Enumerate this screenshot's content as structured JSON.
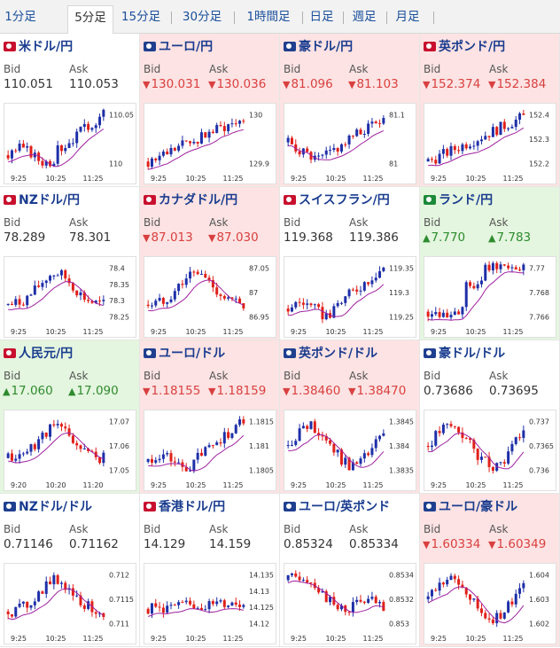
{
  "tabs": [
    "1分足",
    "5分足",
    "15分足",
    "30分足",
    "1時間足",
    "日足",
    "週足",
    "月足"
  ],
  "active_tab": "5分足",
  "labels": {
    "bid": "Bid",
    "ask": "Ask"
  },
  "colors": {
    "up_candle": "#1e2fa8",
    "down_candle": "#e0201a",
    "ma_line": "#a020a0",
    "down_bg": "#fde3e3",
    "up_bg": "#e4f6df"
  },
  "pairs": [
    {
      "name": "米ドル/円",
      "flag": "red",
      "trend": "flat",
      "bid": "110.051",
      "ask": "110.053",
      "arrow": "",
      "x_ticks": [
        "9:25",
        "10:25",
        "11:25"
      ],
      "y_ticks": [
        "110.05",
        "110"
      ],
      "chart_data": {
        "type": "candlestick",
        "ylim": [
          109.96,
          110.09
        ],
        "pattern": "rise-late"
      }
    },
    {
      "name": "ユーロ/円",
      "flag": "blue",
      "trend": "down",
      "bid": "130.031",
      "ask": "130.036",
      "arrow": "▼",
      "x_ticks": [
        "9:25",
        "10:25",
        "11:25"
      ],
      "y_ticks": [
        "130",
        "129.9"
      ],
      "chart_data": {
        "type": "candlestick",
        "ylim": [
          129.86,
          130.09
        ],
        "pattern": "rise"
      }
    },
    {
      "name": "豪ドル/円",
      "flag": "blue",
      "trend": "down",
      "bid": "81.096",
      "ask": "81.103",
      "arrow": "▼",
      "x_ticks": [
        "9:25",
        "10:25",
        "11:25"
      ],
      "y_ticks": [
        "81.1",
        "81"
      ],
      "chart_data": {
        "type": "candlestick",
        "ylim": [
          80.95,
          81.14
        ],
        "pattern": "dip-rise"
      }
    },
    {
      "name": "英ポンド/円",
      "flag": "red",
      "trend": "down",
      "bid": "152.374",
      "ask": "152.384",
      "arrow": "▼",
      "x_ticks": [
        "9:25",
        "10:25",
        "11:25"
      ],
      "y_ticks": [
        "152.4",
        "152.3",
        "152.2"
      ],
      "chart_data": {
        "type": "candlestick",
        "ylim": [
          152.17,
          152.43
        ],
        "pattern": "rise"
      }
    },
    {
      "name": "NZドル/円",
      "flag": "red",
      "trend": "flat",
      "bid": "78.289",
      "ask": "78.301",
      "arrow": "",
      "x_ticks": [
        "9:25",
        "10:25",
        "11:25"
      ],
      "y_ticks": [
        "78.4",
        "78.35",
        "78.3",
        "78.25"
      ],
      "chart_data": {
        "type": "candlestick",
        "ylim": [
          78.22,
          78.41
        ],
        "pattern": "peak-mid"
      }
    },
    {
      "name": "カナダドル/円",
      "flag": "red",
      "trend": "down",
      "bid": "87.013",
      "ask": "87.030",
      "arrow": "▼",
      "x_ticks": [
        "9:25",
        "10:25",
        "11:25"
      ],
      "y_ticks": [
        "87.05",
        "87",
        "86.95"
      ],
      "chart_data": {
        "type": "candlestick",
        "ylim": [
          86.92,
          87.08
        ],
        "pattern": "peak-mid"
      }
    },
    {
      "name": "スイスフラン/円",
      "flag": "red",
      "trend": "flat",
      "bid": "119.368",
      "ask": "119.386",
      "arrow": "",
      "x_ticks": [
        "9:25",
        "10:25",
        "11:25"
      ],
      "y_ticks": [
        "119.35",
        "119.3",
        "119.25"
      ],
      "chart_data": {
        "type": "candlestick",
        "ylim": [
          119.21,
          119.38
        ],
        "pattern": "rise-late"
      }
    },
    {
      "name": "ランド/円",
      "flag": "green",
      "trend": "up",
      "bid": "7.770",
      "ask": "7.783",
      "arrow": "▲",
      "x_ticks": [
        "9:25",
        "10:25",
        "11:25"
      ],
      "y_ticks": [
        "7.77",
        "7.768",
        "7.766"
      ],
      "chart_data": {
        "type": "candlestick",
        "ylim": [
          7.7648,
          7.7712
        ],
        "pattern": "step"
      }
    },
    {
      "name": "人民元/円",
      "flag": "red",
      "trend": "up",
      "bid": "17.060",
      "ask": "17.090",
      "arrow": "▲",
      "x_ticks": [
        "9:20",
        "10:20",
        "11:20"
      ],
      "y_ticks": [
        "17.07",
        "17.06",
        "17.05"
      ],
      "chart_data": {
        "type": "candlestick",
        "ylim": [
          17.045,
          17.074
        ],
        "pattern": "peak-mid"
      }
    },
    {
      "name": "ユーロ/ドル",
      "flag": "blue",
      "trend": "down",
      "bid": "1.18155",
      "ask": "1.18159",
      "arrow": "▼",
      "x_ticks": [
        "9:25",
        "10:25",
        "11:25"
      ],
      "y_ticks": [
        "1.1815",
        "1.181",
        "1.1805"
      ],
      "chart_data": {
        "type": "candlestick",
        "ylim": [
          1.18035,
          1.1818
        ],
        "pattern": "rise-late"
      }
    },
    {
      "name": "英ポンド/ドル",
      "flag": "blue",
      "trend": "down",
      "bid": "1.38460",
      "ask": "1.38470",
      "arrow": "▼",
      "x_ticks": [
        "9:25",
        "10:25",
        "11:25"
      ],
      "y_ticks": [
        "1.3845",
        "1.384",
        "1.3835"
      ],
      "chart_data": {
        "type": "candlestick",
        "ylim": [
          1.3832,
          1.3847
        ],
        "pattern": "wave"
      }
    },
    {
      "name": "豪ドル/ドル",
      "flag": "blue",
      "trend": "flat",
      "bid": "0.73686",
      "ask": "0.73695",
      "arrow": "",
      "x_ticks": [
        "9:25",
        "10:25",
        "11:25"
      ],
      "y_ticks": [
        "0.737",
        "0.7365",
        "0.736"
      ],
      "chart_data": {
        "type": "candlestick",
        "ylim": [
          0.73585,
          0.73715
        ],
        "pattern": "wave"
      }
    },
    {
      "name": "NZドル/ドル",
      "flag": "blue",
      "trend": "flat",
      "bid": "0.71146",
      "ask": "0.71162",
      "arrow": "",
      "x_ticks": [
        "9:25",
        "10:25",
        "11:25"
      ],
      "y_ticks": [
        "0.712",
        "0.7115",
        "0.711"
      ],
      "chart_data": {
        "type": "candlestick",
        "ylim": [
          0.71085,
          0.71225
        ],
        "pattern": "peak-mid"
      }
    },
    {
      "name": "香港ドル/円",
      "flag": "red",
      "trend": "flat",
      "bid": "14.129",
      "ask": "14.159",
      "arrow": "",
      "x_ticks": [
        "9:25",
        "10:25",
        "11:25"
      ],
      "y_ticks": [
        "14.135",
        "14.13",
        "14.125",
        "14.12"
      ],
      "chart_data": {
        "type": "candlestick",
        "ylim": [
          14.117,
          14.137
        ],
        "pattern": "tall"
      }
    },
    {
      "name": "ユーロ/英ポンド",
      "flag": "blue",
      "trend": "flat",
      "bid": "0.85324",
      "ask": "0.85334",
      "arrow": "",
      "x_ticks": [
        "9:25",
        "10:25",
        "11:25"
      ],
      "y_ticks": [
        "0.8534",
        "0.8532",
        "0.853"
      ],
      "chart_data": {
        "type": "candlestick",
        "ylim": [
          0.85292,
          0.85343
        ],
        "pattern": "fall"
      }
    },
    {
      "name": "ユーロ/豪ドル",
      "flag": "blue",
      "trend": "down",
      "bid": "1.60334",
      "ask": "1.60349",
      "arrow": "▼",
      "x_ticks": [
        "9:25",
        "10:25",
        "11:25"
      ],
      "y_ticks": [
        "1.604",
        "1.603",
        "1.602"
      ],
      "chart_data": {
        "type": "candlestick",
        "ylim": [
          1.6017,
          1.6043
        ],
        "pattern": "wave"
      }
    }
  ]
}
